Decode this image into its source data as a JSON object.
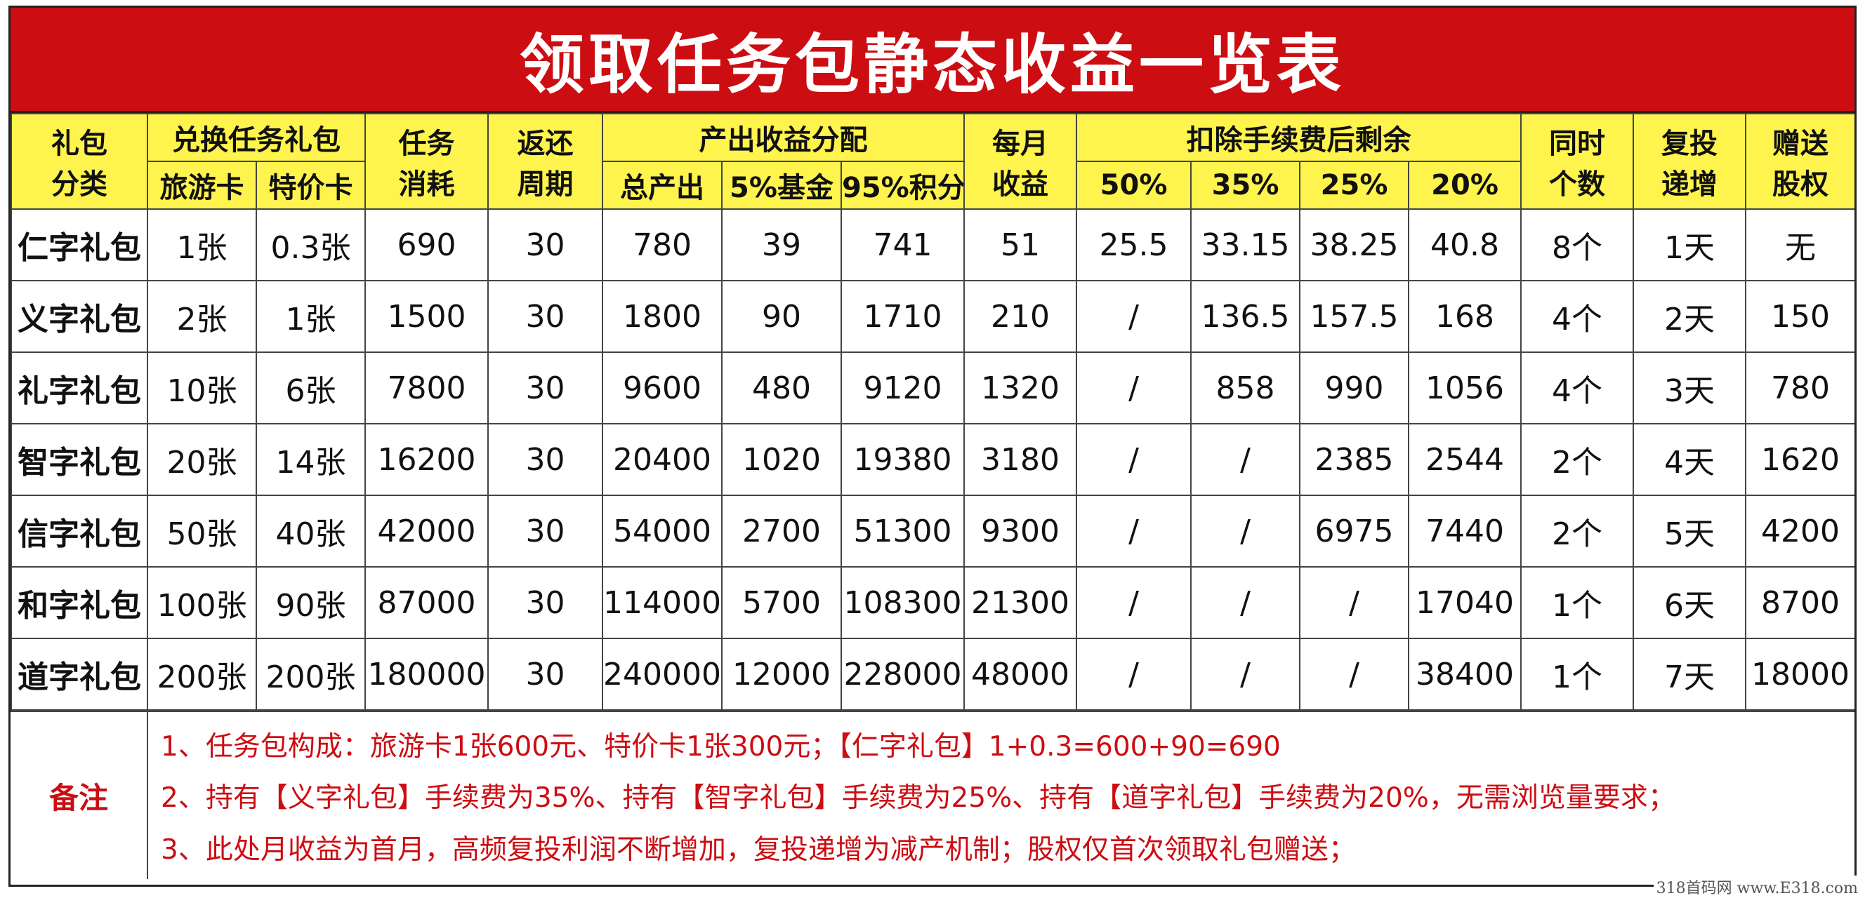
{
  "title": "领取任务包静态收益一览表",
  "header": {
    "pkg_type_line1": "礼包",
    "pkg_type_line2": "分类",
    "exchange": "兑换任务礼包",
    "travel_card": "旅游卡",
    "special_card": "特价卡",
    "task_line1": "任务",
    "task_line2": "消耗",
    "return_line1": "返还",
    "return_line2": "周期",
    "output": "产出收益分配",
    "total": "总产出",
    "fund": "5%基金",
    "points": "95%积分",
    "monthly_line1": "每月",
    "monthly_line2": "收益",
    "after_fee": "扣除手续费后剩余",
    "p50": "50%",
    "p35": "35%",
    "p25": "25%",
    "p20": "20%",
    "concurrent_line1": "同时",
    "concurrent_line2": "个数",
    "reinvest_line1": "复投",
    "reinvest_line2": "递增",
    "gift_line1": "赠送",
    "gift_line2": "股权"
  },
  "rows": [
    {
      "name": "仁字礼包",
      "travel": "1张",
      "special": "0.3张",
      "task": "690",
      "cycle": "30",
      "total": "780",
      "fund": "39",
      "points": "741",
      "monthly": "51",
      "p50": "25.5",
      "p35": "33.15",
      "p25": "38.25",
      "p20": "40.8",
      "count": "8个",
      "reinvest": "1天",
      "gift": "无"
    },
    {
      "name": "义字礼包",
      "travel": "2张",
      "special": "1张",
      "task": "1500",
      "cycle": "30",
      "total": "1800",
      "fund": "90",
      "points": "1710",
      "monthly": "210",
      "p50": "/",
      "p35": "136.5",
      "p25": "157.5",
      "p20": "168",
      "count": "4个",
      "reinvest": "2天",
      "gift": "150"
    },
    {
      "name": "礼字礼包",
      "travel": "10张",
      "special": "6张",
      "task": "7800",
      "cycle": "30",
      "total": "9600",
      "fund": "480",
      "points": "9120",
      "monthly": "1320",
      "p50": "/",
      "p35": "858",
      "p25": "990",
      "p20": "1056",
      "count": "4个",
      "reinvest": "3天",
      "gift": "780"
    },
    {
      "name": "智字礼包",
      "travel": "20张",
      "special": "14张",
      "task": "16200",
      "cycle": "30",
      "total": "20400",
      "fund": "1020",
      "points": "19380",
      "monthly": "3180",
      "p50": "/",
      "p35": "/",
      "p25": "2385",
      "p20": "2544",
      "count": "2个",
      "reinvest": "4天",
      "gift": "1620"
    },
    {
      "name": "信字礼包",
      "travel": "50张",
      "special": "40张",
      "task": "42000",
      "cycle": "30",
      "total": "54000",
      "fund": "2700",
      "points": "51300",
      "monthly": "9300",
      "p50": "/",
      "p35": "/",
      "p25": "6975",
      "p20": "7440",
      "count": "2个",
      "reinvest": "5天",
      "gift": "4200"
    },
    {
      "name": "和字礼包",
      "travel": "100张",
      "special": "90张",
      "task": "87000",
      "cycle": "30",
      "total": "114000",
      "fund": "5700",
      "points": "108300",
      "monthly": "21300",
      "p50": "/",
      "p35": "/",
      "p25": "/",
      "p20": "17040",
      "count": "1个",
      "reinvest": "6天",
      "gift": "8700"
    },
    {
      "name": "道字礼包",
      "travel": "200张",
      "special": "200张",
      "task": "180000",
      "cycle": "30",
      "total": "240000",
      "fund": "12000",
      "points": "228000",
      "monthly": "48000",
      "p50": "/",
      "p35": "/",
      "p25": "/",
      "p20": "38400",
      "count": "1个",
      "reinvest": "7天",
      "gift": "18000"
    }
  ],
  "notes": {
    "label": "备注",
    "lines": [
      "1、任务包构成：旅游卡1张600元、特价卡1张300元；【仁字礼包】1+0.3=600+90=690",
      "2、持有【义字礼包】手续费为35%、持有【智字礼包】手续费为25%、持有【道字礼包】手续费为20%，无需浏览量要求；",
      "3、此处月收益为首月，高频复投利润不断增加，复投递增为减产机制；股权仅首次领取礼包赠送；"
    ]
  },
  "watermark": "318首码网 www.E318.com"
}
